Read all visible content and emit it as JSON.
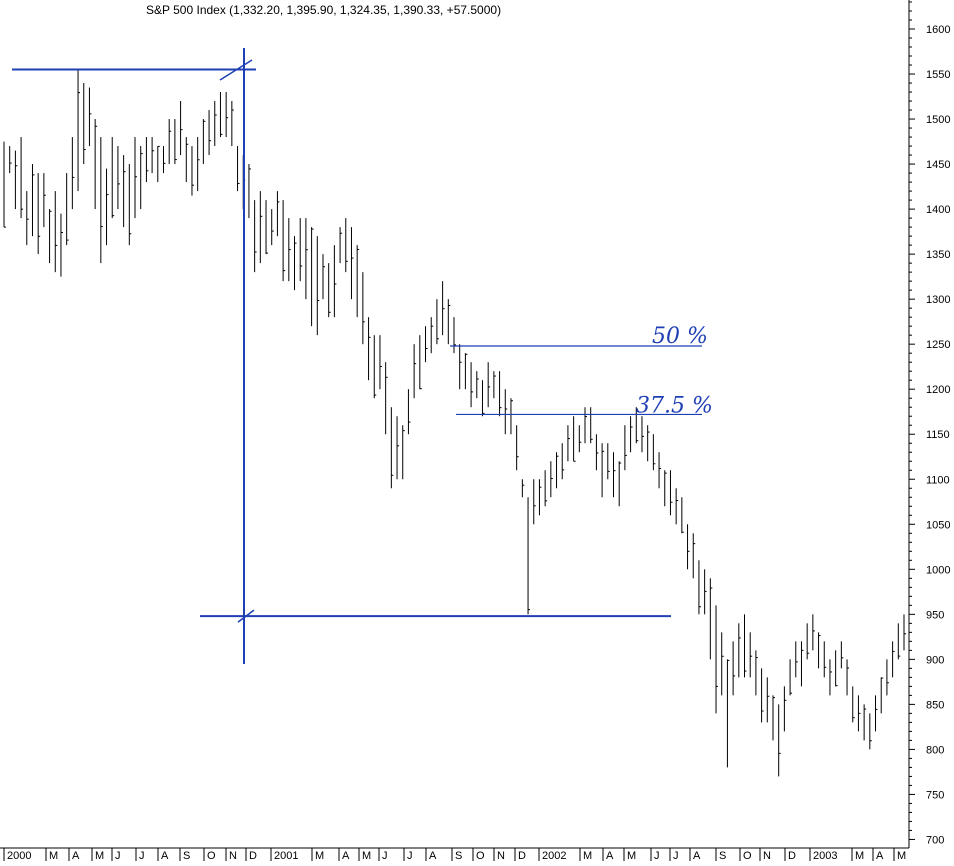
{
  "chart_data": {
    "type": "ohlc",
    "title": "S&P 500 Index (1,332.20, 1,395.90, 1,324.35, 1,390.33, +57.5000)",
    "y_axis": {
      "ticks": [
        1600,
        1550,
        1500,
        1450,
        1400,
        1350,
        1300,
        1250,
        1200,
        1150,
        1100,
        1050,
        1000,
        950,
        900,
        850,
        800,
        750,
        700
      ],
      "ylim": [
        700,
        1620
      ],
      "position": "right"
    },
    "x_axis": {
      "tick_labels": [
        "2000",
        "M",
        "A",
        "M",
        "J",
        "J",
        "A",
        "S",
        "O",
        "N",
        "D",
        "2001",
        "M",
        "A",
        "M",
        "J",
        "J",
        "A",
        "S",
        "O",
        "N",
        "D",
        "2002",
        "M",
        "A",
        "M",
        "J",
        "J",
        "A",
        "S",
        "O",
        "N",
        "D",
        "2003",
        "M",
        "A",
        "M"
      ]
    },
    "series": [
      {
        "frequency": "weekly",
        "bars": [
          [
            1475,
            1380
          ],
          [
            1470,
            1440
          ],
          [
            1465,
            1400
          ],
          [
            1480,
            1390
          ],
          [
            1420,
            1360
          ],
          [
            1450,
            1370
          ],
          [
            1440,
            1350
          ],
          [
            1440,
            1380
          ],
          [
            1400,
            1340
          ],
          [
            1420,
            1330
          ],
          [
            1395,
            1325
          ],
          [
            1440,
            1360
          ],
          [
            1480,
            1400
          ],
          [
            1555,
            1420
          ],
          [
            1540,
            1450
          ],
          [
            1535,
            1470
          ],
          [
            1500,
            1400
          ],
          [
            1480,
            1340
          ],
          [
            1445,
            1360
          ],
          [
            1480,
            1390
          ],
          [
            1470,
            1400
          ],
          [
            1460,
            1380
          ],
          [
            1450,
            1360
          ],
          [
            1480,
            1390
          ],
          [
            1470,
            1400
          ],
          [
            1480,
            1430
          ],
          [
            1480,
            1440
          ],
          [
            1470,
            1430
          ],
          [
            1470,
            1440
          ],
          [
            1500,
            1450
          ],
          [
            1500,
            1450
          ],
          [
            1520,
            1460
          ],
          [
            1480,
            1430
          ],
          [
            1470,
            1415
          ],
          [
            1480,
            1420
          ],
          [
            1500,
            1450
          ],
          [
            1510,
            1460
          ],
          [
            1520,
            1470
          ],
          [
            1530,
            1480
          ],
          [
            1530,
            1480
          ],
          [
            1520,
            1470
          ],
          [
            1470,
            1420
          ],
          [
            1460,
            1400
          ],
          [
            1450,
            1390
          ],
          [
            1410,
            1330
          ],
          [
            1420,
            1340
          ],
          [
            1410,
            1350
          ],
          [
            1400,
            1360
          ],
          [
            1420,
            1370
          ],
          [
            1410,
            1320
          ],
          [
            1390,
            1320
          ],
          [
            1370,
            1310
          ],
          [
            1390,
            1320
          ],
          [
            1390,
            1300
          ],
          [
            1380,
            1270
          ],
          [
            1370,
            1260
          ],
          [
            1350,
            1300
          ],
          [
            1340,
            1280
          ],
          [
            1360,
            1280
          ],
          [
            1380,
            1340
          ],
          [
            1390,
            1330
          ],
          [
            1380,
            1300
          ],
          [
            1360,
            1280
          ],
          [
            1330,
            1250
          ],
          [
            1280,
            1210
          ],
          [
            1260,
            1190
          ],
          [
            1260,
            1200
          ],
          [
            1230,
            1150
          ],
          [
            1180,
            1090
          ],
          [
            1170,
            1100
          ],
          [
            1160,
            1100
          ],
          [
            1200,
            1150
          ],
          [
            1250,
            1190
          ],
          [
            1260,
            1200
          ],
          [
            1270,
            1230
          ],
          [
            1280,
            1240
          ],
          [
            1300,
            1250
          ],
          [
            1320,
            1260
          ],
          [
            1300,
            1250
          ],
          [
            1280,
            1240
          ],
          [
            1250,
            1200
          ],
          [
            1240,
            1200
          ],
          [
            1230,
            1180
          ],
          [
            1220,
            1190
          ],
          [
            1210,
            1170
          ],
          [
            1230,
            1180
          ],
          [
            1220,
            1190
          ],
          [
            1220,
            1170
          ],
          [
            1200,
            1150
          ],
          [
            1190,
            1150
          ],
          [
            1160,
            1110
          ],
          [
            1100,
            1080
          ],
          [
            1080,
            950
          ],
          [
            1100,
            1050
          ],
          [
            1100,
            1060
          ],
          [
            1110,
            1070
          ],
          [
            1120,
            1080
          ],
          [
            1130,
            1090
          ],
          [
            1140,
            1100
          ],
          [
            1160,
            1120
          ],
          [
            1170,
            1120
          ],
          [
            1160,
            1130
          ],
          [
            1180,
            1140
          ],
          [
            1180,
            1140
          ],
          [
            1150,
            1110
          ],
          [
            1140,
            1080
          ],
          [
            1140,
            1100
          ],
          [
            1130,
            1080
          ],
          [
            1120,
            1070
          ],
          [
            1160,
            1110
          ],
          [
            1170,
            1130
          ],
          [
            1180,
            1140
          ],
          [
            1170,
            1130
          ],
          [
            1160,
            1120
          ],
          [
            1150,
            1110
          ],
          [
            1130,
            1090
          ],
          [
            1110,
            1070
          ],
          [
            1110,
            1060
          ],
          [
            1090,
            1050
          ],
          [
            1080,
            1040
          ],
          [
            1050,
            1000
          ],
          [
            1040,
            990
          ],
          [
            1010,
            950
          ],
          [
            1000,
            950
          ],
          [
            990,
            900
          ],
          [
            960,
            840
          ],
          [
            930,
            860
          ],
          [
            900,
            780
          ],
          [
            920,
            860
          ],
          [
            940,
            880
          ],
          [
            950,
            880
          ],
          [
            930,
            880
          ],
          [
            910,
            860
          ],
          [
            890,
            830
          ],
          [
            880,
            830
          ],
          [
            860,
            810
          ],
          [
            850,
            770
          ],
          [
            870,
            820
          ],
          [
            900,
            860
          ],
          [
            920,
            880
          ],
          [
            920,
            870
          ],
          [
            940,
            900
          ],
          [
            950,
            910
          ],
          [
            930,
            890
          ],
          [
            920,
            880
          ],
          [
            900,
            860
          ],
          [
            910,
            870
          ],
          [
            920,
            890
          ],
          [
            900,
            860
          ],
          [
            870,
            830
          ],
          [
            860,
            820
          ],
          [
            850,
            810
          ],
          [
            840,
            800
          ],
          [
            860,
            820
          ],
          [
            880,
            840
          ],
          [
            900,
            860
          ],
          [
            920,
            880
          ],
          [
            940,
            900
          ],
          [
            950,
            910
          ]
        ]
      }
    ],
    "annotations": [
      {
        "type": "trend_line",
        "label": "50 %",
        "y_value": 1248,
        "color": "#1f3fb5"
      },
      {
        "type": "trend_line",
        "label": "37.5 %",
        "y_value": 1172,
        "color": "#1f3fb5"
      },
      {
        "type": "horizontal_line",
        "y_value": 1555,
        "color": "#1f3fb5"
      },
      {
        "type": "horizontal_line",
        "y_value": 948,
        "color": "#1f3fb5"
      },
      {
        "type": "vertical_line",
        "color": "#1f3fb5"
      }
    ],
    "grid": false,
    "legend": "none",
    "colors": {
      "bars": "#000000",
      "annotation": "#1f3fb5",
      "background": "#ffffff"
    }
  }
}
